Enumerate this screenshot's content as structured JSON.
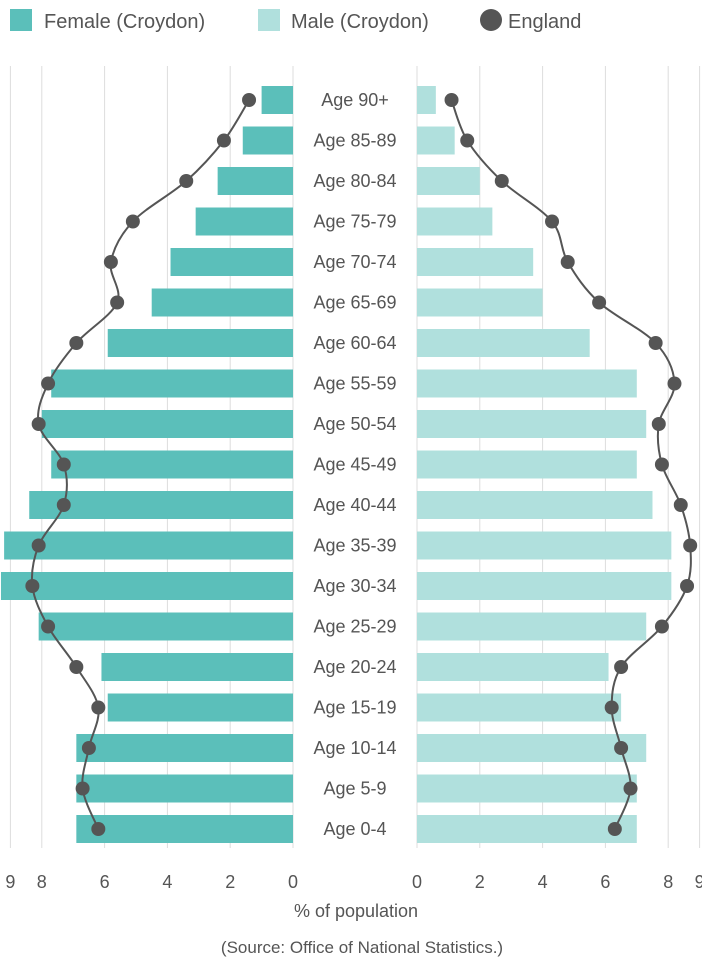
{
  "chart_data": {
    "type": "bar",
    "subtype": "population-pyramid",
    "categories": [
      "Age 0-4",
      "Age 5-9",
      "Age 10-14",
      "Age 15-19",
      "Age 20-24",
      "Age 25-29",
      "Age 30-34",
      "Age 35-39",
      "Age 40-44",
      "Age 45-49",
      "Age 50-54",
      "Age 55-59",
      "Age 60-64",
      "Age 65-69",
      "Age 70-74",
      "Age 75-79",
      "Age 80-84",
      "Age 85-89",
      "Age 90+"
    ],
    "series": [
      {
        "name": "Female (Croydon)",
        "side": "left",
        "color": "#5bbfba",
        "values": [
          6.9,
          6.9,
          6.9,
          5.9,
          6.1,
          8.1,
          9.3,
          9.2,
          8.4,
          7.7,
          8.0,
          7.7,
          5.9,
          4.5,
          3.9,
          3.1,
          2.4,
          1.6,
          1.0
        ]
      },
      {
        "name": "Male (Croydon)",
        "side": "right",
        "color": "#b0e0dd",
        "values": [
          7.0,
          7.0,
          7.3,
          6.5,
          6.1,
          7.3,
          8.1,
          8.1,
          7.5,
          7.0,
          7.3,
          7.0,
          5.5,
          4.0,
          3.7,
          2.4,
          2.0,
          1.2,
          0.6
        ]
      },
      {
        "name": "England",
        "type": "line",
        "color": "#555555",
        "female": [
          6.2,
          6.7,
          6.5,
          6.2,
          6.9,
          7.8,
          8.3,
          8.1,
          7.3,
          7.3,
          8.1,
          7.8,
          6.9,
          5.6,
          5.8,
          5.1,
          3.4,
          2.2,
          1.4
        ],
        "male": [
          6.3,
          6.8,
          6.5,
          6.2,
          6.5,
          7.8,
          8.6,
          8.7,
          8.4,
          7.8,
          7.7,
          8.2,
          7.6,
          5.8,
          4.8,
          4.3,
          2.7,
          1.6,
          1.1
        ]
      }
    ],
    "xlabel": "% of population",
    "xlim": [
      0,
      9
    ],
    "ticks_left": [
      "9",
      "8",
      "6",
      "4",
      "2",
      "0"
    ],
    "ticks_right": [
      "0",
      "2",
      "4",
      "6",
      "8",
      "9"
    ],
    "tick_values": [
      9,
      8,
      6,
      4,
      2,
      0
    ],
    "grid": true,
    "legend_position": "top-left",
    "source": "(Source: Office of National Statistics.)"
  }
}
